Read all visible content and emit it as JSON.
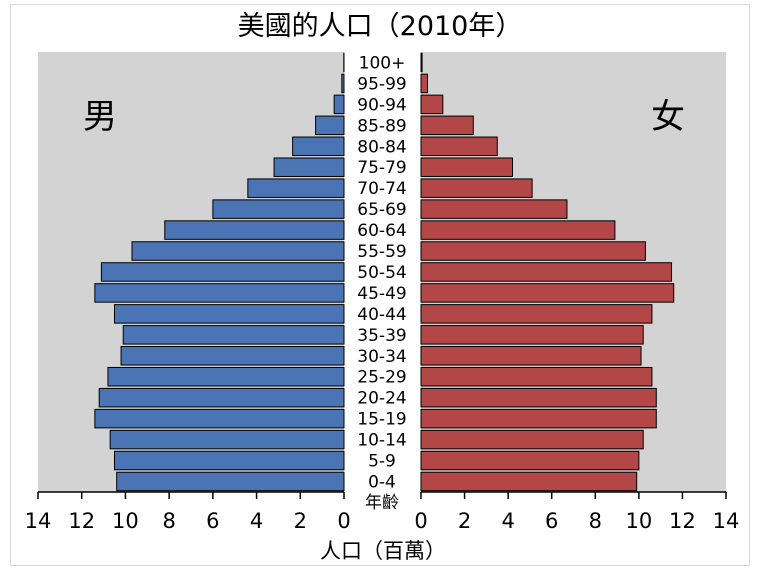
{
  "chart_data": {
    "type": "bar",
    "title": "美國的人口（2010年）",
    "xlabel": "人口（百萬）",
    "center_label": "年齡",
    "left_label": "男",
    "right_label": "女",
    "categories": [
      "100+",
      "95-99",
      "90-94",
      "85-89",
      "80-84",
      "75-79",
      "70-74",
      "65-69",
      "60-64",
      "55-59",
      "50-54",
      "45-49",
      "40-44",
      "35-39",
      "30-34",
      "25-29",
      "20-24",
      "15-19",
      "10-14",
      "5-9",
      "0-4"
    ],
    "series": [
      {
        "name": "男",
        "color": "#4a74b4",
        "values": [
          0.01,
          0.1,
          0.45,
          1.3,
          2.35,
          3.2,
          4.4,
          6.0,
          8.2,
          9.7,
          11.1,
          11.4,
          10.5,
          10.1,
          10.2,
          10.8,
          11.2,
          11.4,
          10.7,
          10.5,
          10.4
        ]
      },
      {
        "name": "女",
        "color": "#b34646",
        "values": [
          0.05,
          0.3,
          1.0,
          2.4,
          3.5,
          4.2,
          5.1,
          6.7,
          8.9,
          10.3,
          11.5,
          11.6,
          10.6,
          10.2,
          10.1,
          10.6,
          10.8,
          10.8,
          10.2,
          10.0,
          9.9
        ]
      }
    ],
    "xlim": [
      0,
      14
    ],
    "xticks": [
      0,
      2,
      4,
      6,
      8,
      10,
      12,
      14
    ],
    "background": "#d3d3d3"
  }
}
